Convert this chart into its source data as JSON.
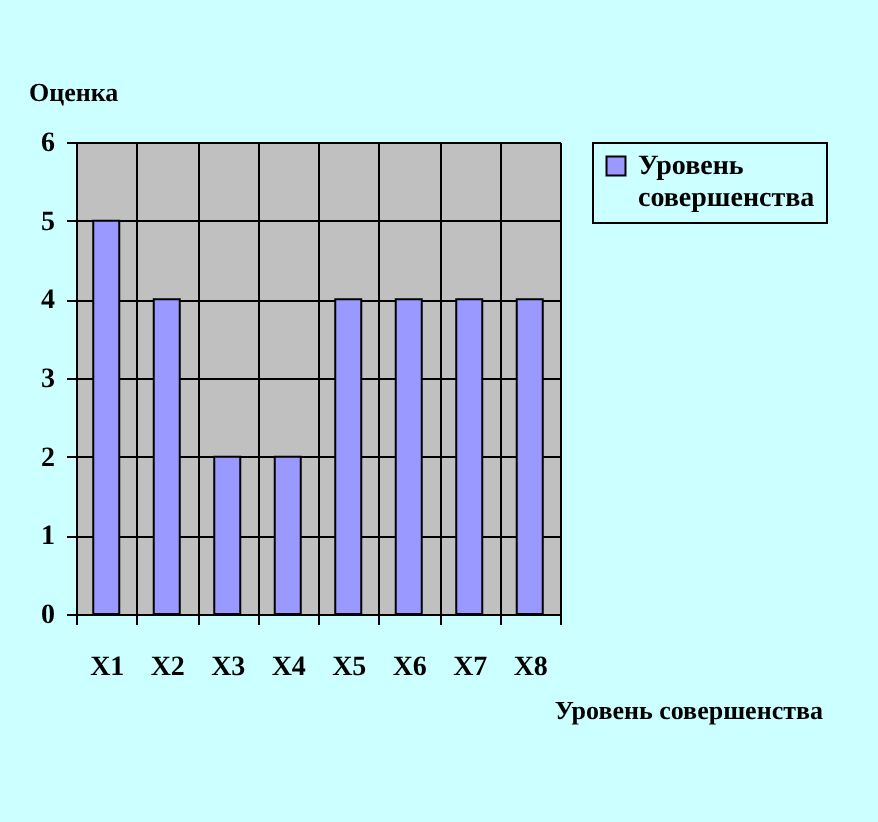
{
  "chart_data": {
    "type": "bar",
    "xlabel": "Уровень совершенства",
    "ylabel": "Оценка",
    "categories": [
      "X1",
      "X2",
      "X3",
      "X4",
      "X5",
      "X6",
      "X7",
      "X8"
    ],
    "series": [
      {
        "name": "Уровень совершенства",
        "color": "#9999ff",
        "values": [
          5,
          4,
          2,
          2,
          4,
          4,
          4,
          4
        ]
      }
    ],
    "ylim": [
      0,
      6
    ],
    "yticks": [
      0,
      1,
      2,
      3,
      4,
      5,
      6
    ],
    "grid": true,
    "legend": "top right"
  }
}
